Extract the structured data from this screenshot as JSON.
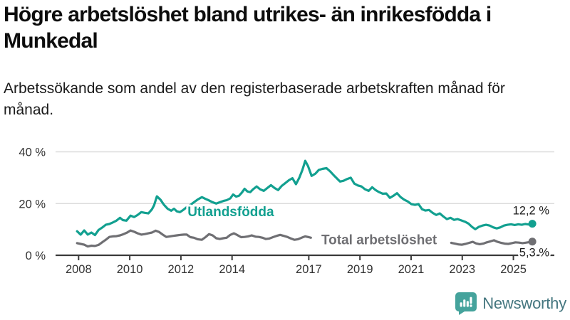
{
  "title": "Högre arbetslöshet bland utrikes- än inrikesfödda i Munkedal",
  "subtitle": "Arbetssökande som andel av den registerbaserade arbetskraften månad för månad.",
  "brand": {
    "name": "Newsworthy"
  },
  "colors": {
    "foreign_born_line": "#12a090",
    "total_line": "#6f6f73",
    "axis": "#3a3a3a",
    "gridline": "#dcdcdc",
    "value_label": "#1a1a1a",
    "brand_icon": "#45a39c",
    "brand_text": "#44767f"
  },
  "chart_data": {
    "type": "line",
    "title": "Högre arbetslöshet bland utrikes- än inrikesfödda i Munkedal",
    "subtitle": "Arbetssökande som andel av den registerbaserade arbetskraften månad för månad.",
    "grid": true,
    "legend_position": "inline-labels",
    "x_axis": {
      "tick_years": [
        2008,
        2010,
        2012,
        2014,
        2017,
        2019,
        2021,
        2023,
        2025
      ],
      "range": [
        2007.1,
        2026.6
      ]
    },
    "y_axis": {
      "unit": "%",
      "range": [
        0,
        44
      ],
      "ticks": [
        {
          "value": 0,
          "label": "0 %"
        },
        {
          "value": 20,
          "label": "20 %"
        },
        {
          "value": 40,
          "label": "40 %"
        }
      ]
    },
    "series": [
      {
        "id": "utlandsfodda",
        "name": "Utlandsfödda",
        "color": "#12a090",
        "end_value": 12.2,
        "end_label": "12,2 %",
        "label_at": [
          2013.95,
          17.0
        ],
        "segments": [
          [
            [
              2007.94,
              9.3
            ],
            [
              2008.08,
              8.0
            ],
            [
              2008.22,
              9.6
            ],
            [
              2008.36,
              8.0
            ],
            [
              2008.5,
              8.8
            ],
            [
              2008.64,
              7.8
            ],
            [
              2008.78,
              9.8
            ],
            [
              2008.92,
              10.7
            ],
            [
              2009.06,
              11.8
            ],
            [
              2009.2,
              12.1
            ],
            [
              2009.34,
              12.7
            ],
            [
              2009.48,
              13.4
            ],
            [
              2009.62,
              14.5
            ],
            [
              2009.73,
              13.6
            ],
            [
              2009.87,
              13.4
            ],
            [
              2010.03,
              15.3
            ],
            [
              2010.17,
              14.8
            ],
            [
              2010.31,
              15.6
            ],
            [
              2010.45,
              16.7
            ],
            [
              2010.59,
              16.4
            ],
            [
              2010.73,
              16.2
            ],
            [
              2010.87,
              17.8
            ],
            [
              2010.95,
              19.3
            ],
            [
              2011.06,
              22.8
            ],
            [
              2011.2,
              21.5
            ],
            [
              2011.34,
              19.5
            ],
            [
              2011.48,
              18.0
            ],
            [
              2011.62,
              17.2
            ],
            [
              2011.73,
              18.0
            ],
            [
              2011.84,
              17.0
            ],
            [
              2011.96,
              16.7
            ],
            [
              2012.09,
              17.5
            ],
            [
              2012.23,
              18.6
            ],
            [
              2012.37,
              19.5
            ],
            [
              2012.51,
              20.5
            ],
            [
              2012.65,
              21.5
            ],
            [
              2012.82,
              22.5
            ],
            [
              2012.96,
              21.8
            ],
            [
              2013.1,
              21.2
            ],
            [
              2013.24,
              20.5
            ],
            [
              2013.38,
              20.0
            ],
            [
              2013.52,
              20.5
            ],
            [
              2013.66,
              21.0
            ],
            [
              2013.79,
              21.3
            ],
            [
              2013.93,
              22.0
            ],
            [
              2014.04,
              23.5
            ],
            [
              2014.16,
              22.7
            ],
            [
              2014.27,
              23.0
            ],
            [
              2014.38,
              24.2
            ],
            [
              2014.49,
              25.7
            ],
            [
              2014.6,
              24.7
            ],
            [
              2014.71,
              24.4
            ],
            [
              2014.82,
              25.5
            ],
            [
              2014.96,
              26.6
            ],
            [
              2015.1,
              25.5
            ],
            [
              2015.24,
              24.9
            ],
            [
              2015.38,
              26.0
            ],
            [
              2015.52,
              27.1
            ],
            [
              2015.66,
              26.0
            ],
            [
              2015.8,
              25.2
            ],
            [
              2015.94,
              26.8
            ],
            [
              2016.08,
              27.9
            ],
            [
              2016.22,
              29.0
            ],
            [
              2016.36,
              29.8
            ],
            [
              2016.5,
              27.5
            ],
            [
              2016.63,
              30.0
            ],
            [
              2016.75,
              33.0
            ],
            [
              2016.86,
              36.5
            ],
            [
              2016.97,
              34.5
            ],
            [
              2017.11,
              30.7
            ],
            [
              2017.25,
              31.5
            ],
            [
              2017.39,
              33.0
            ],
            [
              2017.53,
              33.4
            ],
            [
              2017.69,
              33.7
            ],
            [
              2017.83,
              32.5
            ],
            [
              2017.97,
              31.0
            ],
            [
              2018.08,
              29.9
            ],
            [
              2018.22,
              28.5
            ],
            [
              2018.36,
              28.8
            ],
            [
              2018.5,
              29.5
            ],
            [
              2018.64,
              30.0
            ],
            [
              2018.78,
              27.7
            ],
            [
              2018.92,
              27.0
            ],
            [
              2019.06,
              26.6
            ],
            [
              2019.2,
              25.5
            ],
            [
              2019.34,
              24.9
            ],
            [
              2019.48,
              26.3
            ],
            [
              2019.61,
              25.2
            ],
            [
              2019.75,
              24.4
            ],
            [
              2019.89,
              23.8
            ],
            [
              2020.03,
              23.9
            ],
            [
              2020.17,
              22.2
            ],
            [
              2020.31,
              23.0
            ],
            [
              2020.45,
              24.0
            ],
            [
              2020.59,
              22.5
            ],
            [
              2020.73,
              21.5
            ],
            [
              2020.87,
              20.8
            ],
            [
              2021.01,
              19.8
            ],
            [
              2021.15,
              19.5
            ],
            [
              2021.29,
              19.8
            ],
            [
              2021.43,
              17.8
            ],
            [
              2021.56,
              17.3
            ],
            [
              2021.7,
              17.5
            ],
            [
              2021.84,
              16.4
            ],
            [
              2021.98,
              15.6
            ],
            [
              2022.12,
              16.2
            ],
            [
              2022.26,
              15.0
            ],
            [
              2022.4,
              14.0
            ],
            [
              2022.54,
              14.5
            ],
            [
              2022.68,
              13.7
            ],
            [
              2022.82,
              14.0
            ],
            [
              2022.96,
              13.5
            ],
            [
              2023.1,
              13.0
            ],
            [
              2023.24,
              12.3
            ],
            [
              2023.38,
              11.0
            ],
            [
              2023.51,
              10.1
            ],
            [
              2023.65,
              11.0
            ],
            [
              2023.79,
              11.5
            ],
            [
              2023.93,
              11.8
            ],
            [
              2024.07,
              11.5
            ],
            [
              2024.21,
              10.8
            ],
            [
              2024.35,
              10.4
            ],
            [
              2024.49,
              10.8
            ],
            [
              2024.63,
              11.5
            ],
            [
              2024.77,
              11.8
            ],
            [
              2024.91,
              12.0
            ],
            [
              2025.05,
              11.7
            ],
            [
              2025.19,
              12.0
            ],
            [
              2025.33,
              11.8
            ],
            [
              2025.46,
              12.1
            ],
            [
              2025.6,
              11.9
            ],
            [
              2025.74,
              12.2
            ]
          ]
        ]
      },
      {
        "id": "total",
        "name": "Total arbetslöshet",
        "color": "#6f6f73",
        "end_value": 5.3,
        "end_label": "5,3 %",
        "label_at": [
          2019.75,
          6.2
        ],
        "segments": [
          [
            [
              2007.94,
              4.7
            ],
            [
              2008.08,
              4.4
            ],
            [
              2008.22,
              4.1
            ],
            [
              2008.36,
              3.4
            ],
            [
              2008.5,
              3.7
            ],
            [
              2008.64,
              3.6
            ],
            [
              2008.78,
              4.0
            ],
            [
              2008.92,
              5.0
            ],
            [
              2009.06,
              6.0
            ],
            [
              2009.2,
              7.1
            ],
            [
              2009.34,
              7.3
            ],
            [
              2009.48,
              7.4
            ],
            [
              2009.62,
              7.7
            ],
            [
              2009.76,
              8.2
            ],
            [
              2009.9,
              8.8
            ],
            [
              2010.03,
              9.6
            ],
            [
              2010.17,
              9.1
            ],
            [
              2010.31,
              8.5
            ],
            [
              2010.45,
              8.0
            ],
            [
              2010.59,
              8.2
            ],
            [
              2010.73,
              8.5
            ],
            [
              2010.87,
              8.8
            ],
            [
              2011.01,
              9.5
            ],
            [
              2011.15,
              9.0
            ],
            [
              2011.29,
              8.0
            ],
            [
              2011.43,
              7.1
            ],
            [
              2011.57,
              7.3
            ],
            [
              2011.7,
              7.5
            ],
            [
              2011.84,
              7.7
            ],
            [
              2011.98,
              7.9
            ],
            [
              2012.12,
              8.0
            ],
            [
              2012.23,
              8.0
            ],
            [
              2012.37,
              7.0
            ],
            [
              2012.51,
              6.8
            ],
            [
              2012.65,
              6.2
            ],
            [
              2012.82,
              6.0
            ],
            [
              2012.96,
              7.0
            ],
            [
              2013.1,
              8.2
            ],
            [
              2013.24,
              7.7
            ],
            [
              2013.38,
              6.6
            ],
            [
              2013.52,
              6.3
            ],
            [
              2013.66,
              6.6
            ],
            [
              2013.79,
              6.8
            ],
            [
              2013.93,
              7.9
            ],
            [
              2014.07,
              8.5
            ],
            [
              2014.21,
              7.8
            ],
            [
              2014.35,
              7.0
            ],
            [
              2014.49,
              7.1
            ],
            [
              2014.63,
              7.3
            ],
            [
              2014.77,
              7.7
            ],
            [
              2014.91,
              7.2
            ],
            [
              2015.05,
              7.1
            ],
            [
              2015.19,
              6.8
            ],
            [
              2015.32,
              6.3
            ],
            [
              2015.46,
              6.5
            ],
            [
              2015.6,
              7.0
            ],
            [
              2015.74,
              7.5
            ],
            [
              2015.88,
              7.9
            ],
            [
              2016.02,
              7.5
            ],
            [
              2016.16,
              7.1
            ],
            [
              2016.3,
              6.5
            ],
            [
              2016.44,
              6.0
            ],
            [
              2016.58,
              6.2
            ],
            [
              2016.72,
              6.8
            ],
            [
              2016.86,
              7.3
            ],
            [
              2017.0,
              7.0
            ],
            [
              2017.08,
              6.8
            ]
          ],
          [
            [
              2022.57,
              4.8
            ],
            [
              2022.71,
              4.5
            ],
            [
              2022.85,
              4.2
            ],
            [
              2022.99,
              4.1
            ],
            [
              2023.13,
              4.4
            ],
            [
              2023.27,
              4.8
            ],
            [
              2023.41,
              5.2
            ],
            [
              2023.54,
              4.6
            ],
            [
              2023.68,
              4.3
            ],
            [
              2023.82,
              4.5
            ],
            [
              2023.96,
              5.0
            ],
            [
              2024.1,
              5.4
            ],
            [
              2024.24,
              5.8
            ],
            [
              2024.38,
              5.2
            ],
            [
              2024.52,
              4.8
            ],
            [
              2024.66,
              4.5
            ],
            [
              2024.8,
              4.4
            ],
            [
              2024.94,
              4.7
            ],
            [
              2025.08,
              5.0
            ],
            [
              2025.22,
              4.9
            ],
            [
              2025.36,
              4.7
            ],
            [
              2025.5,
              4.9
            ],
            [
              2025.63,
              5.1
            ],
            [
              2025.74,
              5.3
            ]
          ]
        ]
      }
    ]
  }
}
